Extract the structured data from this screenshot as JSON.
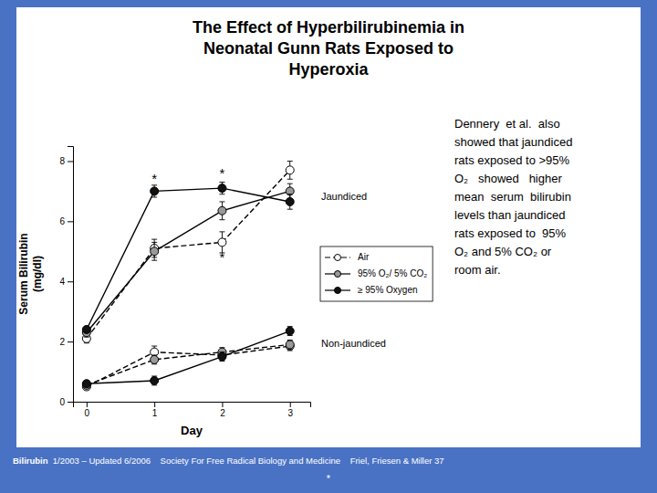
{
  "chart_data": {
    "type": "line",
    "title": "The Effect of Hyperbilirubinemia in\nNeonatal Gunn Rats Exposed to\nHyperoxia",
    "xlabel": "Day",
    "ylabel": "Serum Bilirubin\n(mg/dl)",
    "x": [
      0,
      1,
      2,
      3
    ],
    "xlim": [
      -0.2,
      3.3
    ],
    "xticks": [
      0,
      1,
      2,
      3
    ],
    "ylim": [
      0,
      8.5
    ],
    "yticks": [
      0,
      2,
      4,
      6,
      8
    ],
    "grid": false,
    "legend": "right",
    "marker": "circle",
    "series": [
      {
        "name": "Air",
        "color": "#ffffff",
        "line_style": "dashed",
        "values": [
          2.1,
          5.1,
          5.3,
          7.7
        ],
        "errors": [
          0.15,
          0.3,
          0.35,
          0.3
        ]
      },
      {
        "name": "95% O₂/ 5% CO₂",
        "color": "#999999",
        "line_style": "solid",
        "values": [
          2.3,
          5.0,
          6.35,
          7.0
        ],
        "errors": [
          0.15,
          0.3,
          0.3,
          0.25
        ]
      },
      {
        "name": "≥ 95% Oxygen",
        "color": "#111111",
        "line_style": "solid",
        "values": [
          2.4,
          7.0,
          7.1,
          6.65
        ],
        "errors": [
          0.1,
          0.2,
          0.2,
          0.25
        ]
      },
      {
        "name": "Air",
        "color": "#ffffff",
        "line_style": "dashed",
        "values": [
          0.5,
          1.65,
          1.55,
          1.85
        ],
        "errors": [
          0.1,
          0.2,
          0.15,
          0.15
        ]
      },
      {
        "name": "95% O₂/ 5% CO₂",
        "color": "#999999",
        "line_style": "dashed",
        "values": [
          0.55,
          1.4,
          1.65,
          1.9
        ],
        "errors": [
          0.1,
          0.15,
          0.15,
          0.15
        ]
      },
      {
        "name": "≥ 95% Oxygen",
        "color": "#111111",
        "line_style": "solid",
        "values": [
          0.6,
          0.7,
          1.5,
          2.35
        ],
        "errors": [
          0.1,
          0.15,
          0.15,
          0.15
        ]
      }
    ],
    "annotations": [
      {
        "text": "*",
        "x": 1.0,
        "y": 7.25
      },
      {
        "text": "*",
        "x": 2.0,
        "y": 7.45
      },
      {
        "text": "*",
        "x": 2.0,
        "y": 4.65
      },
      {
        "text": "Jaundiced",
        "y": 6.8
      },
      {
        "text": "Non-jaundiced",
        "y": 1.9
      },
      {
        "text": "Dennery  et al.  also\nshowed that jaundiced\nrats exposed to >95%\nO₂   showed   higher\nmean  serum  bilirubin\nlevels than jaundiced\nrats exposed to  95%\nO₂ and 5% CO₂ or\nroom air."
      },
      {
        "text": "Bilirubin"
      },
      {
        "text": "  1/2003 – Updated 6/2006    Society For Free Radical Biology and Medicine    Friel, Friesen & Miller 37"
      },
      {
        "text": "*"
      }
    ]
  }
}
